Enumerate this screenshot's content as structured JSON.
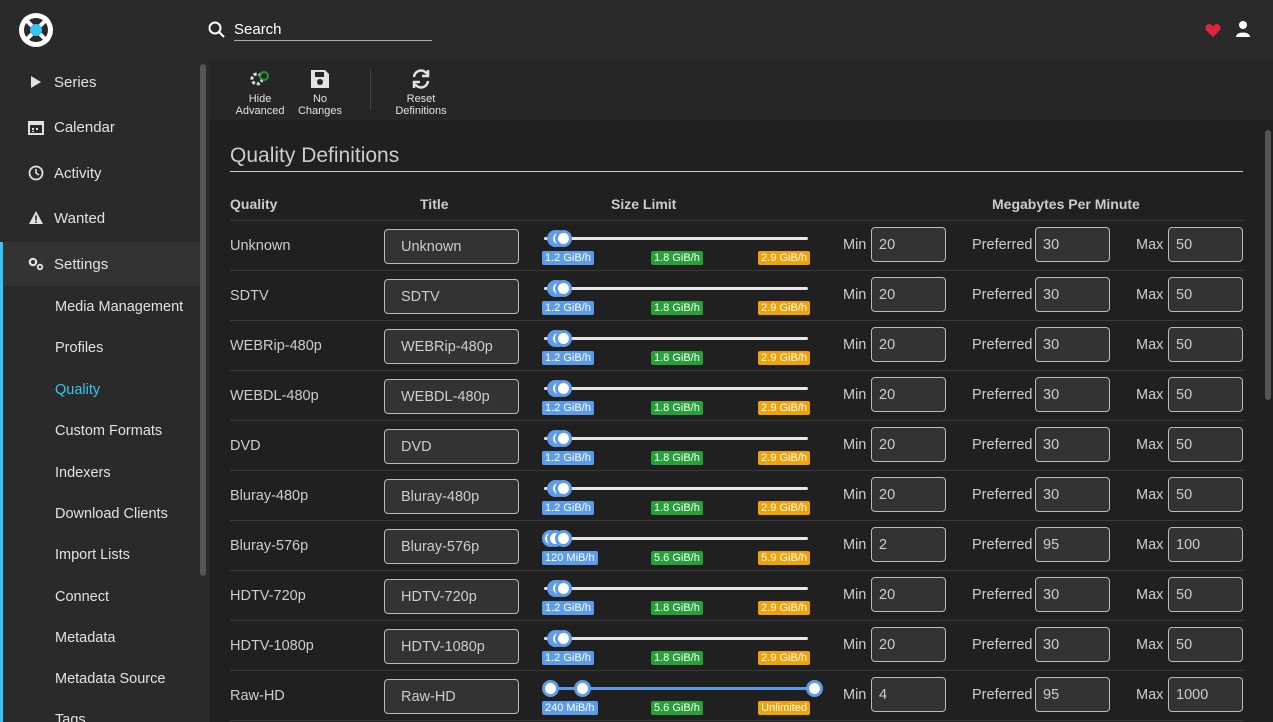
{
  "header": {
    "search_placeholder": "Search",
    "logo": "sonarr-logo",
    "heart_color": "#e0243c"
  },
  "sidebar": {
    "items": [
      {
        "label": "Series",
        "icon": "play-icon"
      },
      {
        "label": "Calendar",
        "icon": "calendar-icon"
      },
      {
        "label": "Activity",
        "icon": "clock-icon"
      },
      {
        "label": "Wanted",
        "icon": "warning-icon"
      },
      {
        "label": "Settings",
        "icon": "gears-icon"
      }
    ],
    "sub_items": [
      "Media Management",
      "Profiles",
      "Quality",
      "Custom Formats",
      "Indexers",
      "Download Clients",
      "Import Lists",
      "Connect",
      "Metadata",
      "Metadata Source",
      "Tags"
    ],
    "active_sub": "Quality",
    "accent": "#35c5f4"
  },
  "toolbar": {
    "hide_advanced": [
      "Hide",
      "Advanced"
    ],
    "no_changes": [
      "No",
      "Changes"
    ],
    "reset_definitions": [
      "Reset",
      "Definitions"
    ]
  },
  "page": {
    "title": "Quality Definitions",
    "columns": {
      "quality": "Quality",
      "title": "Title",
      "size_limit": "Size Limit",
      "mpm": "Megabytes Per Minute"
    },
    "min_label": "Min",
    "preferred_label": "Preferred",
    "max_label": "Max"
  },
  "rows": [
    {
      "quality": "Unknown",
      "title": "Unknown",
      "min": "20",
      "preferred": "30",
      "max": "50",
      "min_size": "1.2 GiB/h",
      "pref_size": "1.8 GiB/h",
      "max_size": "2.9 GiB/h",
      "min_frac": 0.02,
      "pref_frac": 0.03,
      "max_frac": 0.05
    },
    {
      "quality": "SDTV",
      "title": "SDTV",
      "min": "20",
      "preferred": "30",
      "max": "50",
      "min_size": "1.2 GiB/h",
      "pref_size": "1.8 GiB/h",
      "max_size": "2.9 GiB/h",
      "min_frac": 0.02,
      "pref_frac": 0.03,
      "max_frac": 0.05
    },
    {
      "quality": "WEBRip-480p",
      "title": "WEBRip-480p",
      "min": "20",
      "preferred": "30",
      "max": "50",
      "min_size": "1.2 GiB/h",
      "pref_size": "1.8 GiB/h",
      "max_size": "2.9 GiB/h",
      "min_frac": 0.02,
      "pref_frac": 0.03,
      "max_frac": 0.05
    },
    {
      "quality": "WEBDL-480p",
      "title": "WEBDL-480p",
      "min": "20",
      "preferred": "30",
      "max": "50",
      "min_size": "1.2 GiB/h",
      "pref_size": "1.8 GiB/h",
      "max_size": "2.9 GiB/h",
      "min_frac": 0.02,
      "pref_frac": 0.03,
      "max_frac": 0.05
    },
    {
      "quality": "DVD",
      "title": "DVD",
      "min": "20",
      "preferred": "30",
      "max": "50",
      "min_size": "1.2 GiB/h",
      "pref_size": "1.8 GiB/h",
      "max_size": "2.9 GiB/h",
      "min_frac": 0.02,
      "pref_frac": 0.03,
      "max_frac": 0.05
    },
    {
      "quality": "Bluray-480p",
      "title": "Bluray-480p",
      "min": "20",
      "preferred": "30",
      "max": "50",
      "min_size": "1.2 GiB/h",
      "pref_size": "1.8 GiB/h",
      "max_size": "2.9 GiB/h",
      "min_frac": 0.02,
      "pref_frac": 0.03,
      "max_frac": 0.05
    },
    {
      "quality": "Bluray-576p",
      "title": "Bluray-576p",
      "min": "2",
      "preferred": "95",
      "max": "100",
      "min_size": "120 MiB/h",
      "pref_size": "5.6 GiB/h",
      "max_size": "5.9 GiB/h",
      "min_frac": 0.0,
      "pref_frac": 0.02,
      "max_frac": 0.05
    },
    {
      "quality": "HDTV-720p",
      "title": "HDTV-720p",
      "min": "20",
      "preferred": "30",
      "max": "50",
      "min_size": "1.2 GiB/h",
      "pref_size": "1.8 GiB/h",
      "max_size": "2.9 GiB/h",
      "min_frac": 0.02,
      "pref_frac": 0.03,
      "max_frac": 0.05
    },
    {
      "quality": "HDTV-1080p",
      "title": "HDTV-1080p",
      "min": "20",
      "preferred": "30",
      "max": "50",
      "min_size": "1.2 GiB/h",
      "pref_size": "1.8 GiB/h",
      "max_size": "2.9 GiB/h",
      "min_frac": 0.02,
      "pref_frac": 0.03,
      "max_frac": 0.05
    },
    {
      "quality": "Raw-HD",
      "title": "Raw-HD",
      "min": "4",
      "preferred": "95",
      "max": "1000",
      "min_size": "240 MiB/h",
      "pref_size": "5.6 GiB/h",
      "max_size": "Unlimited",
      "min_frac": 0.0,
      "pref_frac": 0.12,
      "max_frac": 1.0
    }
  ]
}
